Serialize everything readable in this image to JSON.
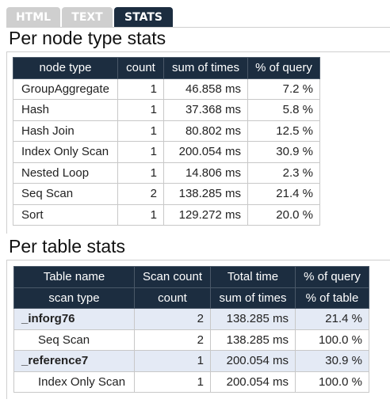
{
  "tabs": [
    {
      "label": "HTML",
      "active": false
    },
    {
      "label": "TEXT",
      "active": false
    },
    {
      "label": "STATS",
      "active": true
    }
  ],
  "node_section": {
    "title": "Per node type stats",
    "headers": [
      "node type",
      "count",
      "sum of times",
      "% of query"
    ],
    "rows": [
      [
        "GroupAggregate",
        "1",
        "46.858 ms",
        "7.2 %"
      ],
      [
        "Hash",
        "1",
        "37.368 ms",
        "5.8 %"
      ],
      [
        "Hash Join",
        "1",
        "80.802 ms",
        "12.5 %"
      ],
      [
        "Index Only Scan",
        "1",
        "200.054 ms",
        "30.9 %"
      ],
      [
        "Nested Loop",
        "1",
        "14.806 ms",
        "2.3 %"
      ],
      [
        "Seq Scan",
        "2",
        "138.285 ms",
        "21.4 %"
      ],
      [
        "Sort",
        "1",
        "129.272 ms",
        "20.0 %"
      ]
    ]
  },
  "table_section": {
    "title": "Per table stats",
    "headers1": [
      "Table name",
      "Scan count",
      "Total time",
      "% of query"
    ],
    "headers2": [
      "scan type",
      "count",
      "sum of times",
      "% of table"
    ],
    "groups": [
      {
        "row": [
          "_inforg76",
          "2",
          "138.285 ms",
          "21.4 %"
        ],
        "sub": [
          [
            "Seq Scan",
            "2",
            "138.285 ms",
            "100.0 %"
          ]
        ]
      },
      {
        "row": [
          "_reference7",
          "1",
          "200.054 ms",
          "30.9 %"
        ],
        "sub": [
          [
            "Index Only Scan",
            "1",
            "200.054 ms",
            "100.0 %"
          ]
        ]
      }
    ]
  }
}
